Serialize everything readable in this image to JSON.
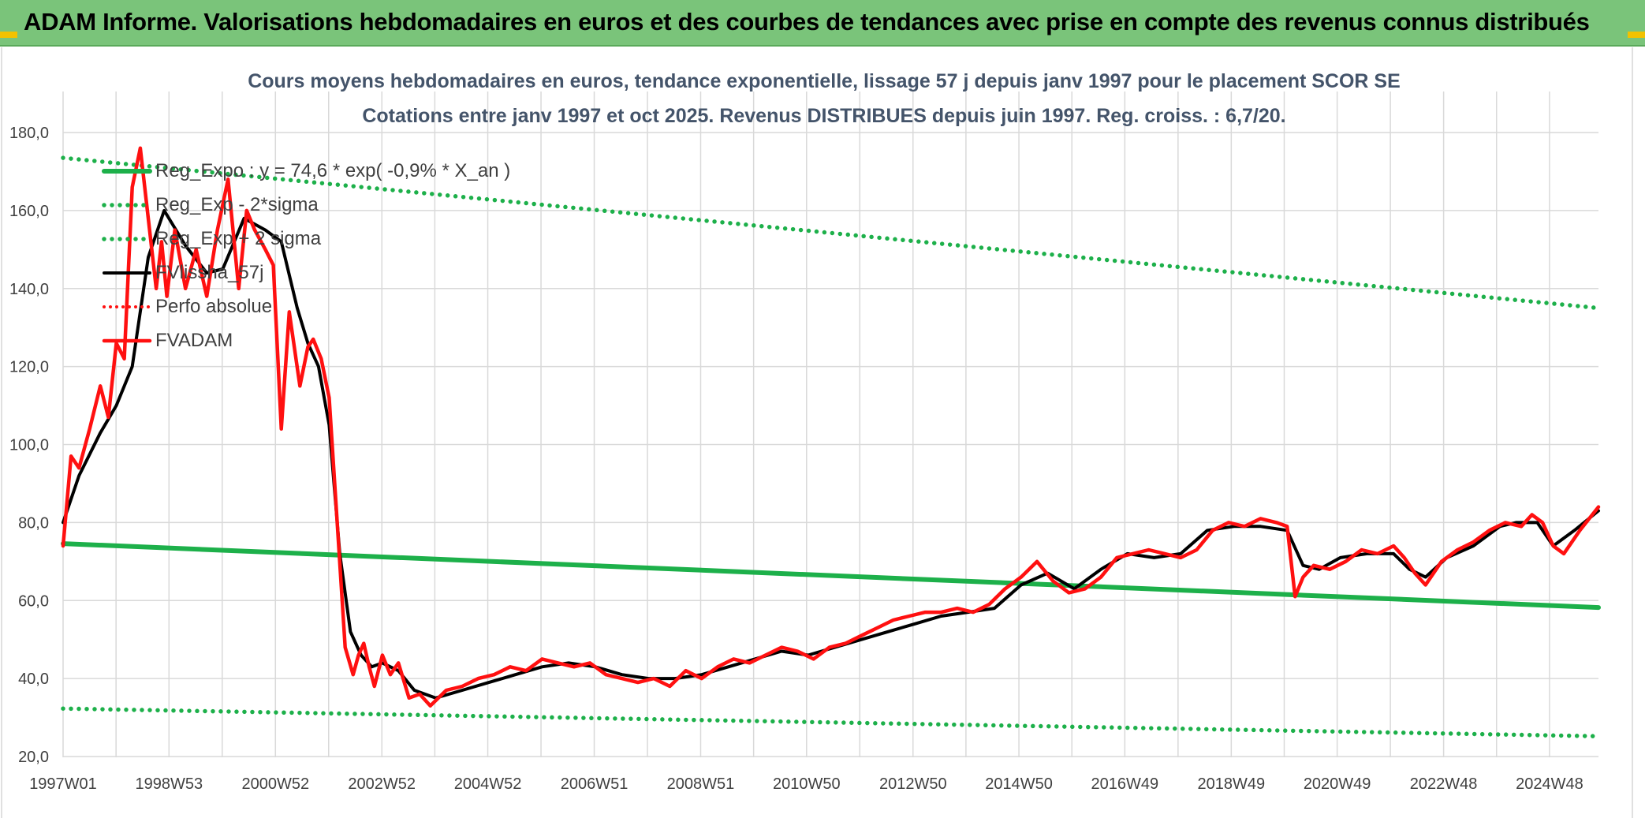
{
  "banner": {
    "title": "ADAM Informe. Valorisations hebdomadaires en euros et des courbes de tendances avec prise en compte des revenus connus distribués"
  },
  "colors": {
    "banner_bg": "#7ac47a",
    "reg_green": "#1db04a",
    "price_red": "#ff1010",
    "smooth_black": "#000000",
    "grid": "#d9d9d9",
    "title_text": "#44546a"
  },
  "chart_data": {
    "type": "line",
    "title": "Cours moyens hebdomadaires en euros, tendance exponentielle, lissage 57 j depuis janv 1997 pour le placement SCOR SE",
    "subtitle": "Cotations entre janv 1997 et oct 2025. Revenus DISTRIBUES depuis juin 1997. Reg. croiss. : 6,7/20.",
    "xlabel": "",
    "ylabel": "",
    "ylim": [
      20,
      190
    ],
    "xlim": [
      1997.0,
      2025.85
    ],
    "yticks": [
      20,
      40,
      60,
      80,
      100,
      120,
      140,
      160,
      180
    ],
    "ytick_labels": [
      "20,0",
      "40,0",
      "60,0",
      "80,0",
      "100,0",
      "120,0",
      "140,0",
      "160,0",
      "180,0"
    ],
    "xticks": [
      1997.0,
      1998.99,
      2000.99,
      2002.99,
      2004.98,
      2006.98,
      2008.98,
      2010.97,
      2012.97,
      2014.96,
      2016.95,
      2018.95,
      2020.94,
      2022.94,
      2024.93
    ],
    "xtick_labels": [
      "1997W01",
      "1998W53",
      "2000W52",
      "2002W52",
      "2004W52",
      "2006W51",
      "2008W51",
      "2010W50",
      "2012W50",
      "2014W50",
      "2016W49",
      "2018W49",
      "2020W49",
      "2022W48",
      "2024W48"
    ],
    "legend_position": "top-left",
    "series": [
      {
        "name": "Reg_Expo : y = 74,6 * exp( -0,9% *  X_an )",
        "style": "solid-green",
        "x": [
          1997.0,
          2025.85
        ],
        "values": [
          74.6,
          58.2
        ]
      },
      {
        "name": "Reg_Exp - 2*sigma",
        "style": "dotted-green",
        "x": [
          1997.0,
          2025.85
        ],
        "values": [
          32.3,
          25.2
        ]
      },
      {
        "name": "Reg_Exp + 2 sigma",
        "style": "dotted-green",
        "x": [
          1997.0,
          2025.85
        ],
        "values": [
          173.5,
          135.0
        ]
      },
      {
        "name": "FVlissha_57j",
        "style": "solid-black",
        "x": [
          1997.0,
          1997.3,
          1997.7,
          1998.0,
          1998.3,
          1998.6,
          1998.9,
          1999.3,
          1999.7,
          2000.0,
          2000.4,
          2000.8,
          2001.1,
          2001.4,
          2001.6,
          2001.8,
          2002.0,
          2002.2,
          2002.4,
          2002.6,
          2002.8,
          2003.0,
          2003.3,
          2003.6,
          2004.0,
          2004.5,
          2005.0,
          2005.5,
          2006.0,
          2006.5,
          2007.0,
          2007.5,
          2008.0,
          2008.5,
          2009.0,
          2009.5,
          2010.0,
          2010.5,
          2011.0,
          2011.5,
          2012.0,
          2012.5,
          2013.0,
          2013.5,
          2014.0,
          2014.5,
          2015.0,
          2015.5,
          2016.0,
          2016.5,
          2017.0,
          2017.5,
          2018.0,
          2018.5,
          2019.0,
          2019.5,
          2020.0,
          2020.3,
          2020.6,
          2021.0,
          2021.5,
          2022.0,
          2022.3,
          2022.6,
          2023.0,
          2023.5,
          2024.0,
          2024.3,
          2024.7,
          2025.0,
          2025.4,
          2025.85
        ],
        "values": [
          80,
          92,
          103,
          110,
          120,
          148,
          160,
          151,
          144,
          145,
          158,
          155,
          152,
          135,
          126,
          120,
          105,
          72,
          52,
          46,
          43,
          44,
          42,
          37,
          35,
          37,
          39,
          41,
          43,
          44,
          43,
          41,
          40,
          40,
          41,
          43,
          45,
          47,
          46,
          48,
          50,
          52,
          54,
          56,
          57,
          58,
          64,
          67,
          63,
          68,
          72,
          71,
          72,
          78,
          79,
          79,
          78,
          69,
          68,
          71,
          72,
          72,
          68,
          66,
          71,
          74,
          79,
          80,
          80,
          74,
          78,
          83
        ]
      },
      {
        "name": "Perfo absolue",
        "style": "dotted-red",
        "x": [],
        "values": []
      },
      {
        "name": "FVADAM",
        "style": "solid-red",
        "x": [
          1997.0,
          1997.15,
          1997.3,
          1997.5,
          1997.7,
          1997.85,
          1998.0,
          1998.15,
          1998.3,
          1998.45,
          1998.6,
          1998.75,
          1998.85,
          1998.95,
          1999.1,
          1999.3,
          1999.5,
          1999.7,
          1999.9,
          2000.1,
          2000.3,
          2000.45,
          2000.6,
          2000.8,
          2000.95,
          2001.1,
          2001.25,
          2001.45,
          2001.6,
          2001.7,
          2001.85,
          2002.0,
          2002.15,
          2002.3,
          2002.45,
          2002.55,
          2002.65,
          2002.75,
          2002.85,
          2003.0,
          2003.15,
          2003.3,
          2003.5,
          2003.7,
          2003.9,
          2004.2,
          2004.5,
          2004.8,
          2005.1,
          2005.4,
          2005.7,
          2006.0,
          2006.3,
          2006.6,
          2006.9,
          2007.2,
          2007.5,
          2007.8,
          2008.1,
          2008.4,
          2008.7,
          2009.0,
          2009.3,
          2009.6,
          2009.9,
          2010.2,
          2010.5,
          2010.8,
          2011.1,
          2011.4,
          2011.7,
          2012.0,
          2012.3,
          2012.6,
          2012.9,
          2013.2,
          2013.5,
          2013.8,
          2014.1,
          2014.4,
          2014.7,
          2015.0,
          2015.3,
          2015.6,
          2015.9,
          2016.2,
          2016.5,
          2016.8,
          2017.1,
          2017.4,
          2017.7,
          2018.0,
          2018.3,
          2018.6,
          2018.9,
          2019.2,
          2019.5,
          2019.8,
          2020.0,
          2020.15,
          2020.3,
          2020.5,
          2020.8,
          2021.1,
          2021.4,
          2021.7,
          2022.0,
          2022.2,
          2022.4,
          2022.6,
          2022.9,
          2023.2,
          2023.5,
          2023.8,
          2024.1,
          2024.4,
          2024.6,
          2024.8,
          2025.0,
          2025.2,
          2025.5,
          2025.85
        ],
        "values": [
          74,
          97,
          94,
          104,
          115,
          107,
          126,
          122,
          166,
          176,
          158,
          140,
          152,
          138,
          155,
          140,
          150,
          138,
          155,
          168,
          140,
          160,
          155,
          150,
          146,
          104,
          134,
          115,
          125,
          127,
          122,
          112,
          80,
          48,
          41,
          46,
          49,
          43,
          38,
          46,
          41,
          44,
          35,
          36,
          33,
          37,
          38,
          40,
          41,
          43,
          42,
          45,
          44,
          43,
          44,
          41,
          40,
          39,
          40,
          38,
          42,
          40,
          43,
          45,
          44,
          46,
          48,
          47,
          45,
          48,
          49,
          51,
          53,
          55,
          56,
          57,
          57,
          58,
          57,
          59,
          63,
          66,
          70,
          65,
          62,
          63,
          66,
          71,
          72,
          73,
          72,
          71,
          73,
          78,
          80,
          79,
          81,
          80,
          79,
          61,
          66,
          69,
          68,
          70,
          73,
          72,
          74,
          71,
          67,
          64,
          70,
          73,
          75,
          78,
          80,
          79,
          82,
          80,
          74,
          72,
          78,
          84
        ]
      }
    ]
  }
}
